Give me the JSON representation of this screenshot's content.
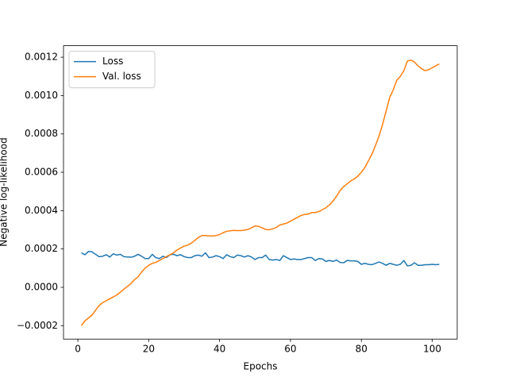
{
  "chart_data": {
    "type": "line",
    "xlabel": "Epochs",
    "ylabel": "Negative log-likelihood",
    "x": [
      1,
      2,
      3,
      4,
      5,
      6,
      7,
      8,
      9,
      10,
      11,
      12,
      13,
      14,
      15,
      16,
      17,
      18,
      19,
      20,
      21,
      22,
      23,
      24,
      25,
      26,
      27,
      28,
      29,
      30,
      31,
      32,
      33,
      34,
      35,
      36,
      37,
      38,
      39,
      40,
      41,
      42,
      43,
      44,
      45,
      46,
      47,
      48,
      49,
      50,
      51,
      52,
      53,
      54,
      55,
      56,
      57,
      58,
      59,
      60,
      61,
      62,
      63,
      64,
      65,
      66,
      67,
      68,
      69,
      70,
      71,
      72,
      73,
      74,
      75,
      76,
      77,
      78,
      79,
      80,
      81,
      82,
      83,
      84,
      85,
      86,
      87,
      88,
      89,
      90,
      91,
      92,
      93,
      94,
      95,
      96,
      97,
      98,
      99,
      100,
      101,
      102
    ],
    "series": [
      {
        "name": "Loss",
        "color": "#1f77b4",
        "values": [
          0.00018,
          0.00017,
          0.000187,
          0.000185,
          0.000172,
          0.00016,
          0.000162,
          0.00017,
          0.000158,
          0.000175,
          0.000168,
          0.000172,
          0.00016,
          0.000158,
          0.000157,
          0.000162,
          0.000172,
          0.000162,
          0.00015,
          0.00015,
          0.000172,
          0.000155,
          0.00015,
          0.000162,
          0.000155,
          0.00017,
          0.000172,
          0.000165,
          0.00017,
          0.00016,
          0.000155,
          0.000155,
          0.000165,
          0.000168,
          0.000162,
          0.00018,
          0.000155,
          0.000158,
          0.000165,
          0.00016,
          0.00015,
          0.00017,
          0.00016,
          0.000155,
          0.000168,
          0.000165,
          0.000158,
          0.000165,
          0.000158,
          0.000145,
          0.000155,
          0.000155,
          0.000168,
          0.000145,
          0.000142,
          0.000145,
          0.00014,
          0.000165,
          0.000155,
          0.000145,
          0.000148,
          0.000145,
          0.000145,
          0.00015,
          0.000155,
          0.000155,
          0.00014,
          0.00015,
          0.000148,
          0.000135,
          0.00014,
          0.000135,
          0.000142,
          0.00013,
          0.000128,
          0.00014,
          0.000138,
          0.000138,
          0.000135,
          0.00012,
          0.000125,
          0.00012,
          0.000118,
          0.000125,
          0.000132,
          0.000125,
          0.000115,
          0.000125,
          0.00012,
          0.000115,
          0.00012,
          0.00014,
          0.000112,
          0.000115,
          0.000128,
          0.000115,
          0.000115,
          0.000118,
          0.000118,
          0.00012,
          0.000118,
          0.00012
        ]
      },
      {
        "name": "Val. loss",
        "color": "#ff7f0e",
        "values": [
          -0.0002,
          -0.000175,
          -0.00016,
          -0.000145,
          -0.00012,
          -9.5e-05,
          -8e-05,
          -7e-05,
          -6e-05,
          -5e-05,
          -4e-05,
          -2.5e-05,
          -1e-05,
          5e-06,
          2e-05,
          4e-05,
          5.5e-05,
          8e-05,
          0.0001,
          0.000115,
          0.000125,
          0.00013,
          0.00014,
          0.00015,
          0.00016,
          0.00017,
          0.00018,
          0.000195,
          0.000205,
          0.000215,
          0.00022,
          0.00023,
          0.000245,
          0.00026,
          0.00027,
          0.00027,
          0.000268,
          0.000268,
          0.00027,
          0.000275,
          0.000285,
          0.000292,
          0.000295,
          0.000297,
          0.000296,
          0.000296,
          0.000298,
          0.000302,
          0.00031,
          0.00032,
          0.000318,
          0.00031,
          0.000302,
          0.0003,
          0.000305,
          0.000312,
          0.000325,
          0.00033,
          0.000335,
          0.000345,
          0.000355,
          0.000365,
          0.000375,
          0.00038,
          0.000382,
          0.00039,
          0.00039,
          0.000395,
          0.000405,
          0.000415,
          0.00043,
          0.00045,
          0.000475,
          0.000505,
          0.000525,
          0.00054,
          0.000555,
          0.000565,
          0.00058,
          0.0006,
          0.000625,
          0.00066,
          0.000695,
          0.00074,
          0.00079,
          0.00085,
          0.00092,
          0.00099,
          0.00103,
          0.00108,
          0.0011,
          0.00113,
          0.00118,
          0.001185,
          0.001175,
          0.001155,
          0.00114,
          0.00113,
          0.001135,
          0.001145,
          0.001155,
          0.001165
        ]
      }
    ],
    "xlim": [
      -4.05,
      107.05
    ],
    "xticks": [
      0,
      20,
      40,
      60,
      80,
      100
    ],
    "ylim": [
      -0.00027,
      0.00126
    ],
    "yticks": [
      {
        "value": -0.0002,
        "label": "−0.0002"
      },
      {
        "value": 0,
        "label": "0.0000"
      },
      {
        "value": 0.0002,
        "label": "0.0002"
      },
      {
        "value": 0.0004,
        "label": "0.0004"
      },
      {
        "value": 0.0006,
        "label": "0.0006"
      },
      {
        "value": 0.0008,
        "label": "0.0008"
      },
      {
        "value": 0.001,
        "label": "0.0010"
      },
      {
        "value": 0.0012,
        "label": "0.0012"
      }
    ],
    "legend": "upper left",
    "grid": false
  }
}
